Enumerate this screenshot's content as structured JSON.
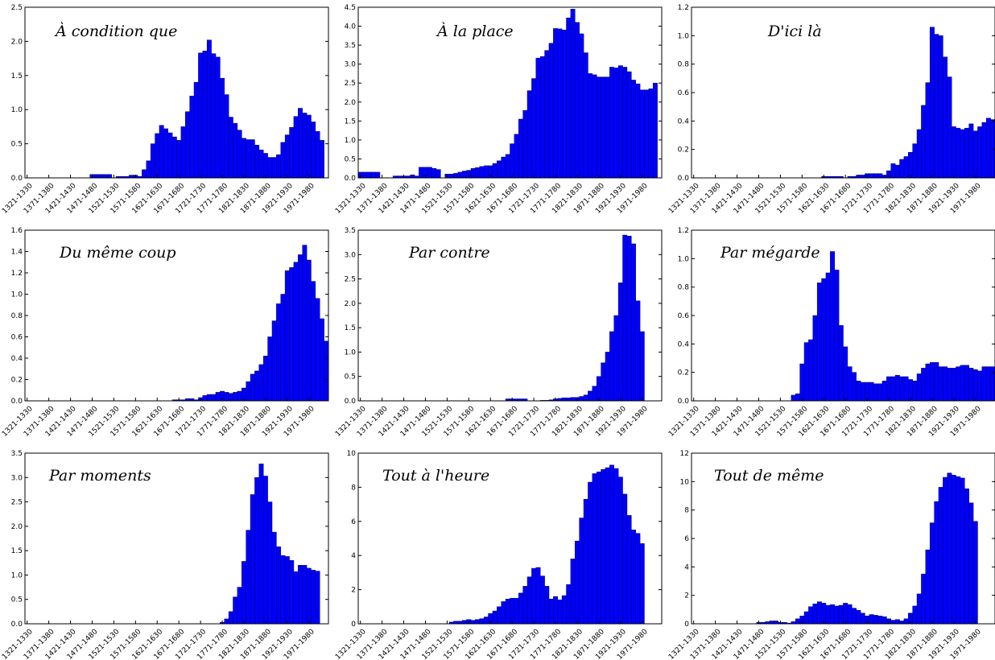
{
  "chart_data": [
    {
      "type": "bar",
      "title": "À condition que",
      "ylim": [
        0,
        2.5
      ],
      "yticks": [
        "0.0",
        "0.5",
        "1.0",
        "1.5",
        "2.0",
        "2.5"
      ],
      "ytick_values": [
        0,
        0.5,
        1.0,
        1.5,
        2.0,
        2.5
      ],
      "xtick_labels": [
        "1321-1330",
        "1371-1380",
        "1421-1430",
        "1471-1480",
        "1521-1530",
        "1571-1580",
        "1621-1630",
        "1671-1680",
        "1721-1730",
        "1771-1780",
        "1821-1830",
        "1871-1880",
        "1921-1930",
        "1971-1980"
      ],
      "values": [
        0,
        0,
        0,
        0,
        0,
        0,
        0,
        0,
        0,
        0,
        0,
        0,
        0,
        0,
        0,
        0.05,
        0.05,
        0.05,
        0.05,
        0.05,
        0,
        0.02,
        0.02,
        0.02,
        0.04,
        0.04,
        0.02,
        0.12,
        0.25,
        0.5,
        0.65,
        0.77,
        0.72,
        0.66,
        0.6,
        0.55,
        0.75,
        0.97,
        1.2,
        1.4,
        1.83,
        1.86,
        2.02,
        1.82,
        1.77,
        1.46,
        1.22,
        0.89,
        0.8,
        0.7,
        0.58,
        0.56,
        0.56,
        0.48,
        0.41,
        0.36,
        0.3,
        0.3,
        0.34,
        0.52,
        0.63,
        0.74,
        0.9,
        1.02,
        0.95,
        0.92,
        0.82,
        0.68,
        0.55
      ]
    },
    {
      "type": "bar",
      "title": "À la place",
      "ylim": [
        0,
        4.5
      ],
      "yticks": [
        "0.0",
        "0.5",
        "1.0",
        "1.5",
        "2.0",
        "2.5",
        "3.0",
        "3.5",
        "4.0",
        "4.5"
      ],
      "ytick_values": [
        0,
        0.5,
        1.0,
        1.5,
        2.0,
        2.5,
        3.0,
        3.5,
        4.0,
        4.5
      ],
      "xtick_labels": [
        "1321-1330",
        "1371-1380",
        "1421-1430",
        "1471-1480",
        "1521-1530",
        "1571-1580",
        "1621-1630",
        "1671-1680",
        "1721-1730",
        "1771-1780",
        "1821-1830",
        "1871-1880",
        "1921-1930",
        "1971-1980"
      ],
      "values": [
        0.15,
        0.15,
        0.15,
        0.15,
        0.15,
        0,
        0,
        0,
        0.05,
        0.05,
        0.05,
        0.05,
        0.08,
        0.05,
        0.28,
        0.28,
        0.28,
        0.25,
        0.22,
        0,
        0.1,
        0.1,
        0.12,
        0.15,
        0.18,
        0.2,
        0.25,
        0.27,
        0.3,
        0.32,
        0.32,
        0.38,
        0.45,
        0.55,
        0.62,
        0.9,
        1.15,
        1.55,
        1.78,
        2.3,
        2.62,
        3.16,
        3.2,
        3.36,
        3.55,
        3.94,
        3.93,
        3.9,
        4.22,
        4.45,
        4.1,
        3.8,
        3.3,
        2.75,
        2.72,
        2.66,
        2.66,
        2.66,
        2.92,
        2.9,
        2.96,
        2.92,
        2.8,
        2.58,
        2.48,
        2.32,
        2.32,
        2.35,
        2.5
      ]
    },
    {
      "type": "bar",
      "title": "D'ici là",
      "ylim": [
        0,
        1.2
      ],
      "yticks": [
        "0.0",
        "0.2",
        "0.4",
        "0.6",
        "0.8",
        "1.0",
        "1.2"
      ],
      "ytick_values": [
        0,
        0.2,
        0.4,
        0.6,
        0.8,
        1.0,
        1.2
      ],
      "xtick_labels": [
        "1321-1330",
        "1371-1380",
        "1421-1430",
        "1471-1480",
        "1521-1530",
        "1571-1580",
        "1621-1630",
        "1671-1680",
        "1721-1730",
        "1771-1780",
        "1821-1830",
        "1871-1880",
        "1921-1930",
        "1971-1980"
      ],
      "values": [
        0,
        0,
        0,
        0,
        0,
        0,
        0,
        0,
        0,
        0,
        0,
        0,
        0,
        0,
        0,
        0,
        0,
        0,
        0,
        0,
        0,
        0,
        0,
        0,
        0,
        0,
        0,
        0,
        0,
        0,
        0.01,
        0.01,
        0.01,
        0.01,
        0.01,
        0,
        0.01,
        0.01,
        0.02,
        0.02,
        0.03,
        0.03,
        0.03,
        0.03,
        0.02,
        0.05,
        0.1,
        0.09,
        0.13,
        0.15,
        0.18,
        0.24,
        0.34,
        0.51,
        0.67,
        1.06,
        1.01,
        1.0,
        0.85,
        0.71,
        0.36,
        0.35,
        0.34,
        0.35,
        0.38,
        0.33,
        0.36,
        0.39,
        0.42,
        0.41
      ]
    },
    {
      "type": "bar",
      "title": "Du même coup",
      "ylim": [
        0,
        1.6
      ],
      "yticks": [
        "0.0",
        "0.2",
        "0.4",
        "0.6",
        "0.8",
        "1.0",
        "1.2",
        "1.4",
        "1.6"
      ],
      "ytick_values": [
        0,
        0.2,
        0.4,
        0.6,
        0.8,
        1.0,
        1.2,
        1.4,
        1.6
      ],
      "xtick_labels": [
        "1321-1330",
        "1371-1380",
        "1421-1430",
        "1471-1480",
        "1521-1530",
        "1571-1580",
        "1621-1630",
        "1671-1680",
        "1721-1730",
        "1771-1780",
        "1821-1830",
        "1871-1880",
        "1921-1930",
        "1971-1980"
      ],
      "values": [
        0,
        0,
        0,
        0,
        0,
        0,
        0,
        0,
        0,
        0,
        0,
        0,
        0,
        0,
        0,
        0,
        0,
        0,
        0,
        0,
        0,
        0,
        0,
        0,
        0,
        0,
        0,
        0,
        0,
        0,
        0,
        0,
        0,
        0,
        0.01,
        0.01,
        0.01,
        0.02,
        0.02,
        0.01,
        0.03,
        0.05,
        0.06,
        0.06,
        0.08,
        0.09,
        0.08,
        0.07,
        0.08,
        0.09,
        0.12,
        0.18,
        0.25,
        0.28,
        0.34,
        0.42,
        0.6,
        0.75,
        0.91,
        1.0,
        1.22,
        1.25,
        1.3,
        1.37,
        1.46,
        1.32,
        1.12,
        0.96,
        0.77,
        0.56
      ]
    },
    {
      "type": "bar",
      "title": "Par contre",
      "ylim": [
        0,
        3.5
      ],
      "yticks": [
        "0.0",
        "0.5",
        "1.0",
        "1.5",
        "2.0",
        "2.5",
        "3.0",
        "3.5"
      ],
      "ytick_values": [
        0,
        0.5,
        1.0,
        1.5,
        2.0,
        2.5,
        3.0,
        3.5
      ],
      "xtick_labels": [
        "1321-1330",
        "1371-1380",
        "1421-1430",
        "1471-1480",
        "1521-1530",
        "1571-1580",
        "1621-1630",
        "1671-1680",
        "1721-1730",
        "1771-1780",
        "1821-1830",
        "1871-1880",
        "1921-1930",
        "1971-1980"
      ],
      "values": [
        0,
        0,
        0,
        0,
        0,
        0,
        0,
        0,
        0,
        0,
        0,
        0,
        0,
        0,
        0,
        0,
        0,
        0,
        0,
        0,
        0,
        0,
        0,
        0,
        0,
        0,
        0,
        0,
        0,
        0,
        0,
        0,
        0,
        0,
        0.04,
        0.04,
        0.04,
        0.04,
        0.04,
        0,
        0,
        0,
        0.01,
        0.01,
        0.02,
        0.04,
        0.05,
        0.06,
        0.06,
        0.07,
        0.07,
        0.09,
        0.12,
        0.2,
        0.3,
        0.5,
        0.78,
        1.0,
        1.42,
        1.75,
        2.42,
        3.4,
        3.38,
        3.22,
        2.05,
        1.42
      ]
    },
    {
      "type": "bar",
      "title": "Par mégarde",
      "ylim": [
        0,
        1.2
      ],
      "yticks": [
        "0.0",
        "0.2",
        "0.4",
        "0.6",
        "0.8",
        "1.0",
        "1.2"
      ],
      "ytick_values": [
        0,
        0.2,
        0.4,
        0.6,
        0.8,
        1.0,
        1.2
      ],
      "xtick_labels": [
        "1321-1330",
        "1371-1380",
        "1421-1430",
        "1471-1480",
        "1521-1530",
        "1571-1580",
        "1621-1630",
        "1671-1680",
        "1721-1730",
        "1771-1780",
        "1821-1830",
        "1871-1880",
        "1921-1930",
        "1971-1980"
      ],
      "values": [
        0,
        0,
        0,
        0,
        0,
        0,
        0,
        0,
        0,
        0,
        0,
        0,
        0,
        0,
        0,
        0,
        0,
        0,
        0,
        0,
        0,
        0,
        0,
        0.04,
        0.05,
        0.26,
        0.41,
        0.43,
        0.6,
        0.83,
        0.86,
        0.9,
        1.05,
        0.92,
        0.53,
        0.38,
        0.24,
        0.2,
        0.14,
        0.13,
        0.13,
        0.13,
        0.12,
        0.12,
        0.14,
        0.17,
        0.17,
        0.18,
        0.17,
        0.17,
        0.15,
        0.14,
        0.19,
        0.23,
        0.26,
        0.27,
        0.27,
        0.24,
        0.24,
        0.23,
        0.23,
        0.24,
        0.25,
        0.25,
        0.23,
        0.22,
        0.21,
        0.24,
        0.24,
        0.24
      ]
    },
    {
      "type": "bar",
      "title": "Par moments",
      "ylim": [
        0,
        3.5
      ],
      "yticks": [
        "0.0",
        "0.5",
        "1.0",
        "1.5",
        "2.0",
        "2.5",
        "3.0",
        "3.5"
      ],
      "ytick_values": [
        0,
        0.5,
        1.0,
        1.5,
        2.0,
        2.5,
        3.0,
        3.5
      ],
      "xtick_labels": [
        "1321-1330",
        "1371-1380",
        "1421-1430",
        "1471-1480",
        "1521-1530",
        "1571-1580",
        "1621-1630",
        "1671-1680",
        "1721-1730",
        "1771-1780",
        "1821-1830",
        "1871-1880",
        "1921-1930",
        "1971-1980"
      ],
      "values": [
        0,
        0,
        0,
        0,
        0,
        0,
        0,
        0,
        0,
        0,
        0,
        0,
        0,
        0,
        0,
        0,
        0,
        0,
        0,
        0,
        0,
        0,
        0,
        0,
        0,
        0,
        0,
        0,
        0,
        0,
        0,
        0,
        0,
        0,
        0,
        0,
        0,
        0,
        0,
        0,
        0,
        0,
        0,
        0,
        0,
        0.03,
        0.1,
        0.25,
        0.55,
        0.75,
        1.28,
        1.92,
        2.65,
        3.0,
        3.28,
        3.03,
        2.5,
        1.88,
        1.58,
        1.4,
        1.38,
        1.3,
        1.07,
        1.2,
        1.2,
        1.14,
        1.1,
        1.08
      ]
    },
    {
      "type": "bar",
      "title": "Tout à l'heure",
      "ylim": [
        0,
        10
      ],
      "yticks": [
        "0",
        "2",
        "4",
        "6",
        "8",
        "10"
      ],
      "ytick_values": [
        0,
        2,
        4,
        6,
        8,
        10
      ],
      "xtick_labels": [
        "1321-1330",
        "1371-1380",
        "1421-1430",
        "1471-1480",
        "1521-1530",
        "1571-1580",
        "1621-1630",
        "1671-1680",
        "1721-1730",
        "1771-1780",
        "1821-1830",
        "1871-1880",
        "1921-1930",
        "1971-1980"
      ],
      "values": [
        0,
        0,
        0,
        0,
        0,
        0,
        0,
        0,
        0,
        0,
        0,
        0,
        0,
        0,
        0,
        0,
        0,
        0,
        0,
        0,
        0,
        0.1,
        0.15,
        0.15,
        0.2,
        0.25,
        0.2,
        0.25,
        0.3,
        0.4,
        0.6,
        0.75,
        1.0,
        1.3,
        1.45,
        1.5,
        1.5,
        1.8,
        2.2,
        2.75,
        3.25,
        3.3,
        2.8,
        2.2,
        1.45,
        1.6,
        1.4,
        1.65,
        2.3,
        3.8,
        4.85,
        6.2,
        7.3,
        8.3,
        8.8,
        8.9,
        9.05,
        9.15,
        9.3,
        9.1,
        8.6,
        7.6,
        6.35,
        5.5,
        5.3,
        4.7
      ]
    },
    {
      "type": "bar",
      "title": "Tout de même",
      "ylim": [
        0,
        12
      ],
      "yticks": [
        "0",
        "2",
        "4",
        "6",
        "8",
        "10",
        "12"
      ],
      "ytick_values": [
        0,
        2,
        4,
        6,
        8,
        10,
        12
      ],
      "xtick_labels": [
        "1321-1330",
        "1371-1380",
        "1421-1430",
        "1471-1480",
        "1521-1530",
        "1571-1580",
        "1621-1630",
        "1671-1680",
        "1721-1730",
        "1771-1780",
        "1821-1830",
        "1871-1880",
        "1921-1930",
        "1971-1980"
      ],
      "values": [
        0,
        0,
        0,
        0,
        0,
        0,
        0,
        0,
        0,
        0,
        0,
        0,
        0,
        0,
        0,
        0.1,
        0.1,
        0.15,
        0.2,
        0.2,
        0.1,
        0.1,
        0.05,
        0.15,
        0.35,
        0.55,
        0.85,
        1.2,
        1.4,
        1.55,
        1.45,
        1.3,
        1.35,
        1.25,
        1.3,
        1.45,
        1.35,
        1.1,
        0.95,
        0.75,
        0.55,
        0.65,
        0.6,
        0.55,
        0.5,
        0.35,
        0.25,
        0.3,
        0.2,
        0.35,
        0.75,
        1.25,
        2.1,
        3.5,
        5.2,
        7.1,
        8.6,
        9.6,
        10.3,
        10.6,
        10.45,
        10.35,
        10.25,
        9.5,
        8.5,
        7.2
      ]
    }
  ]
}
